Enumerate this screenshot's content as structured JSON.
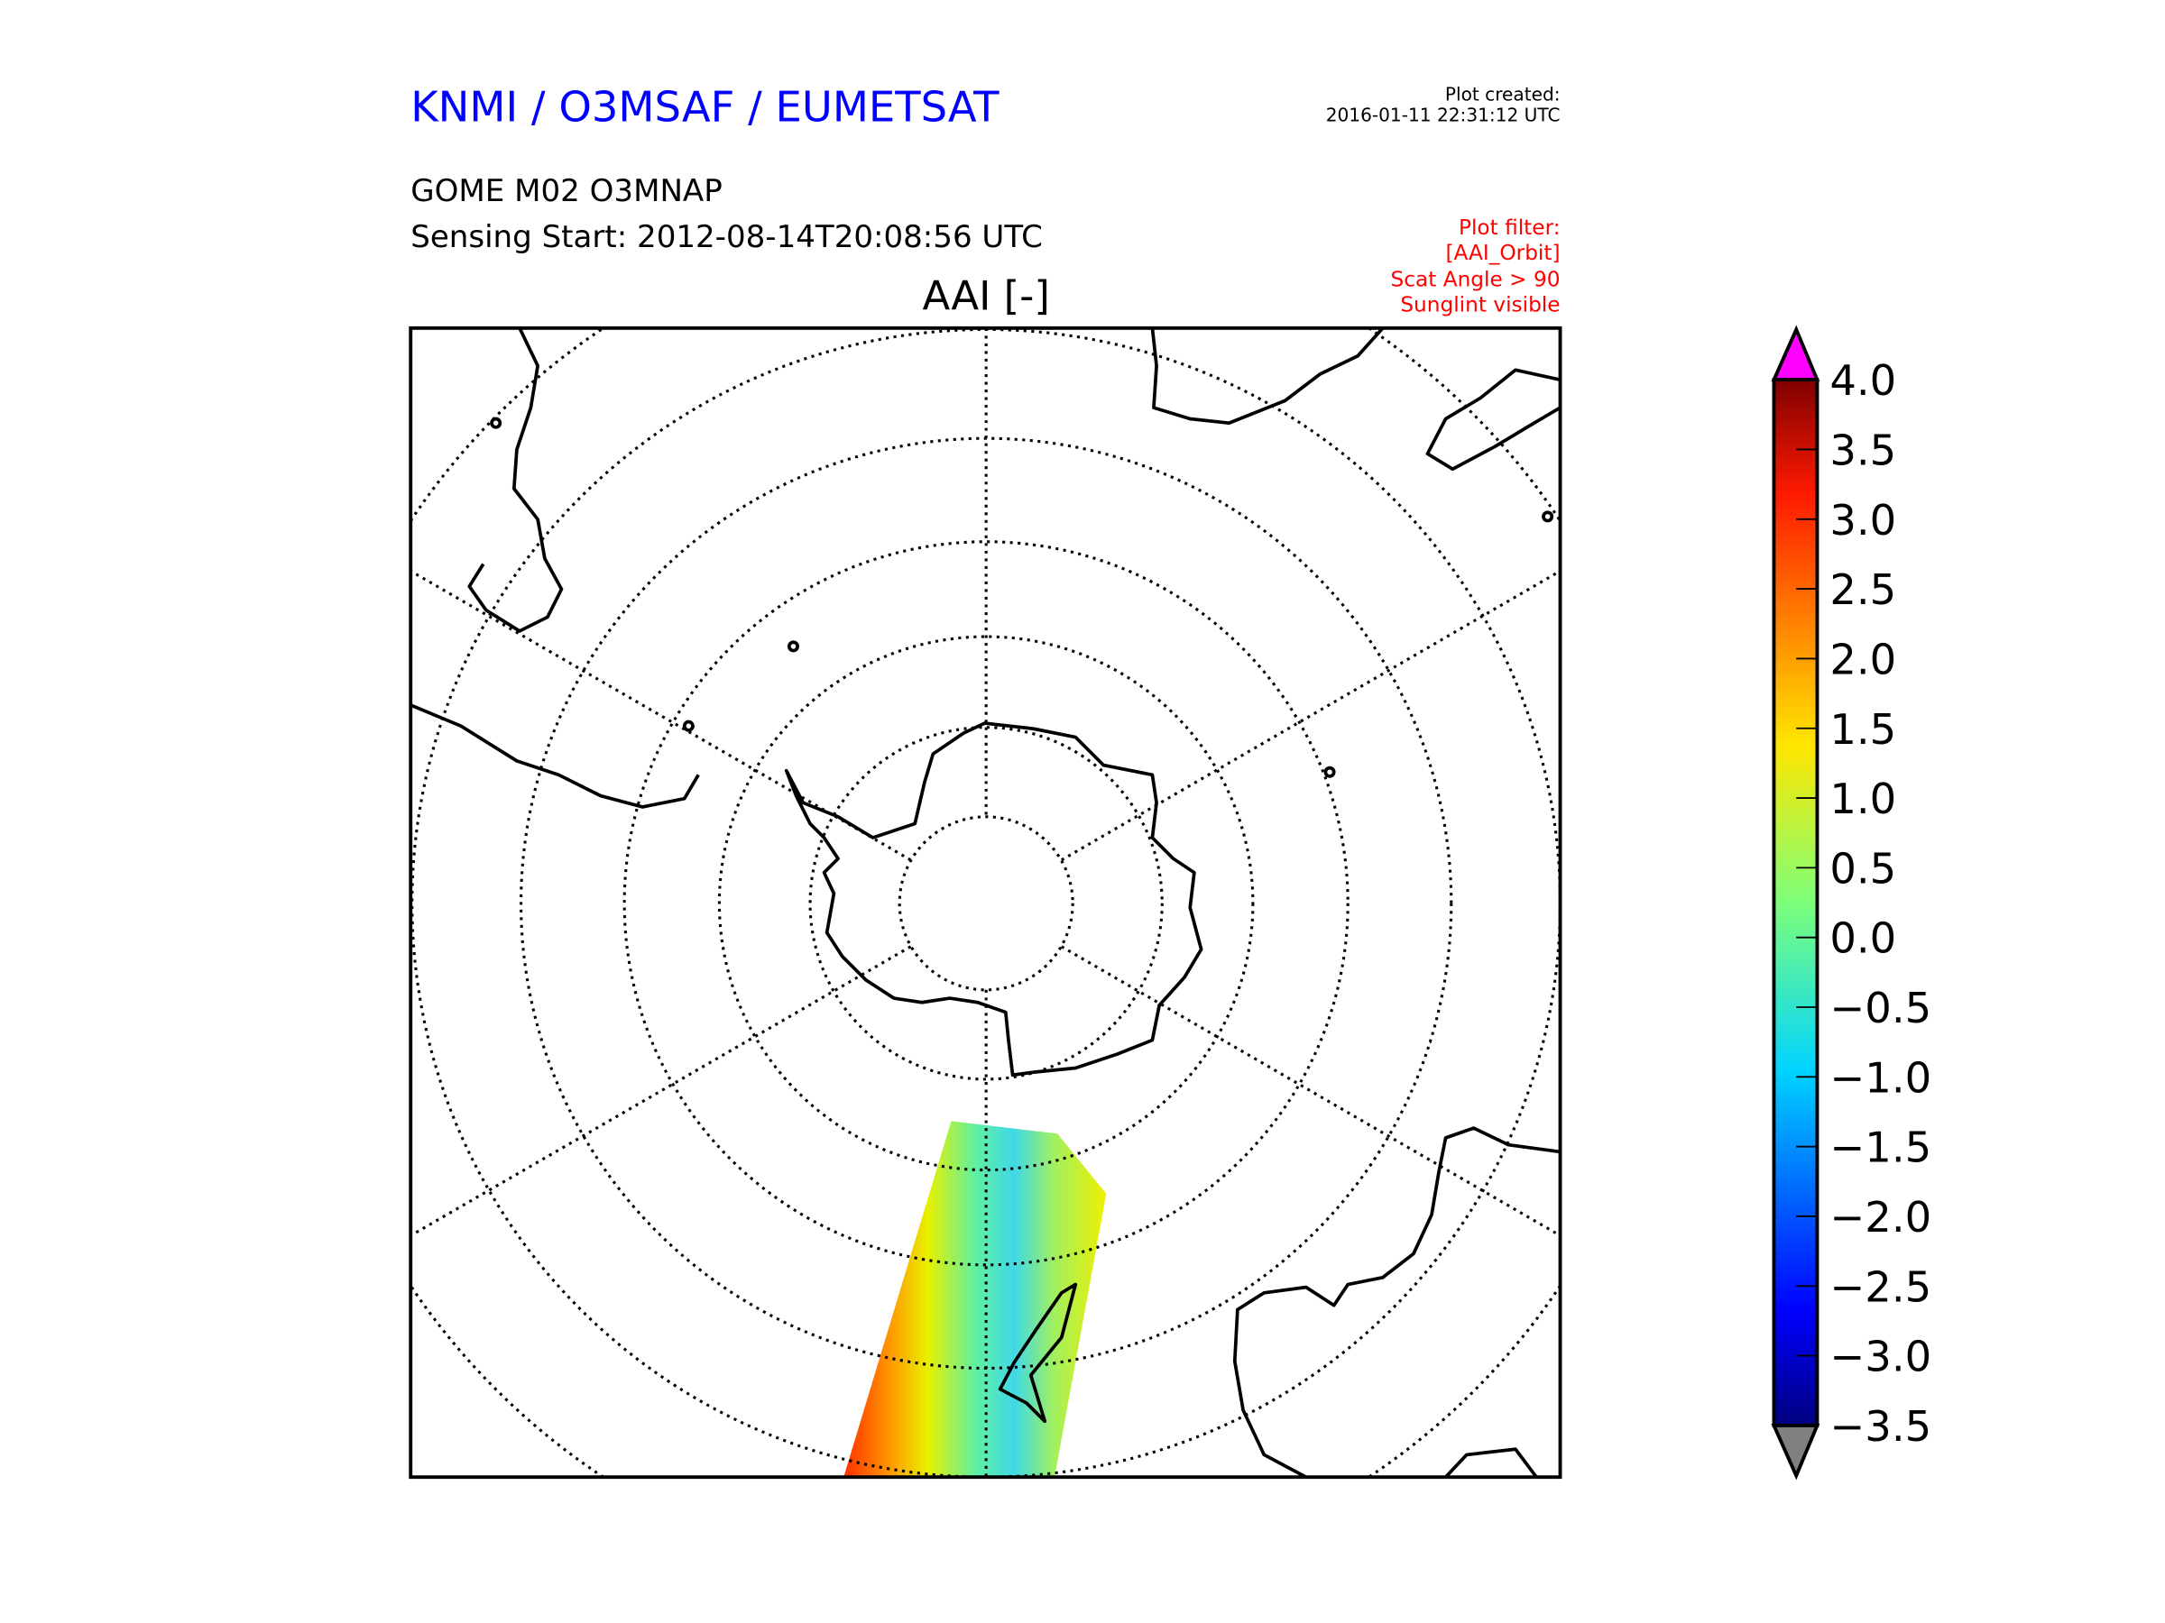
{
  "header": {
    "organisation": "KNMI / O3MSAF / EUMETSAT",
    "plot_created_label": "Plot created:",
    "plot_created_value": "2016-01-11 22:31:12 UTC",
    "product": "GOME M02 O3MNAP",
    "sensing_start": "Sensing Start: 2012-08-14T20:08:56 UTC",
    "filter_lines": [
      "Plot filter:",
      "[AAI_Orbit]",
      "Scat Angle > 90",
      "Sunglint visible"
    ]
  },
  "colors": {
    "title": "#0000ff",
    "filter": "#ff0000",
    "over": "#ff00ff",
    "under": "#808080"
  },
  "chart_data": {
    "type": "heatmap",
    "title": "AAI [-]",
    "projection": "south polar stereographic",
    "colorbar": {
      "cmap": "jet",
      "range": [
        -3.5,
        4.0
      ],
      "extend": "both",
      "tick_labels": [
        "4.0",
        "3.5",
        "3.0",
        "2.5",
        "2.0",
        "1.5",
        "1.0",
        "0.5",
        "0.0",
        "−0.5",
        "−1.0",
        "−1.5",
        "−2.0",
        "−2.5",
        "−3.0",
        "−3.5"
      ]
    }
  }
}
